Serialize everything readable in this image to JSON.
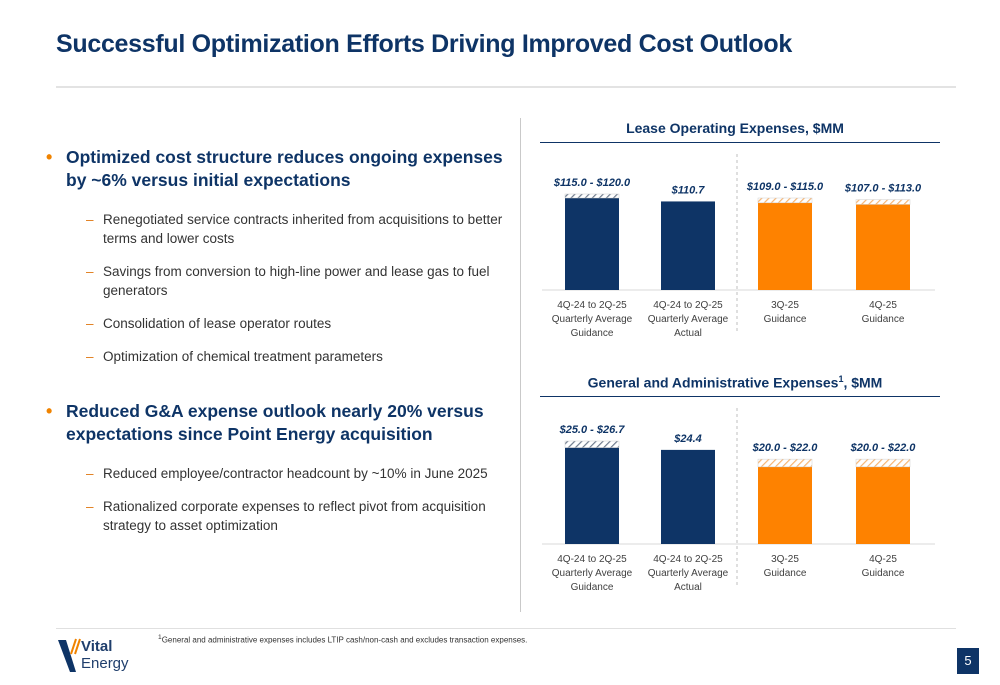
{
  "title": "Successful Optimization Efforts Driving Improved Cost Outlook",
  "bullets": [
    {
      "text": "Optimized cost structure reduces ongoing expenses by ~6% versus initial expectations",
      "subs": [
        "Renegotiated service contracts inherited from acquisitions to better terms and lower costs",
        "Savings from conversion to high-line power and lease gas to fuel generators",
        "Consolidation of lease operator routes",
        "Optimization of chemical treatment parameters"
      ]
    },
    {
      "text": "Reduced G&A expense outlook nearly 20% versus expectations since Point Energy acquisition",
      "subs": [
        "Reduced employee/contractor headcount by ~10% in June 2025",
        "Rationalized corporate expenses to reflect pivot from acquisition strategy to asset optimization"
      ]
    }
  ],
  "colors": {
    "navy": "#0e3466",
    "orange": "#fe8200",
    "orange_hatch": "#f6b574",
    "navy_hatch": "#6f7b8d"
  },
  "chart_data": [
    {
      "type": "bar",
      "title": "Lease Operating Expenses, $MM",
      "title_sup": "",
      "categories": [
        [
          "4Q-24 to 2Q-25",
          "Quarterly Average",
          "Guidance"
        ],
        [
          "4Q-24 to 2Q-25",
          "Quarterly Average",
          "Actual"
        ],
        [
          "3Q-25",
          "Guidance"
        ],
        [
          "4Q-25",
          "Guidance"
        ]
      ],
      "low": [
        115.0,
        110.7,
        109.0,
        107.0
      ],
      "high": [
        120.0,
        110.7,
        115.0,
        113.0
      ],
      "labels": [
        "$115.0 - $120.0",
        "$110.7",
        "$109.0 - $115.0",
        "$107.0 - $113.0"
      ],
      "colors": [
        "navy",
        "navy",
        "orange",
        "orange"
      ],
      "ylim": [
        0,
        125
      ]
    },
    {
      "type": "bar",
      "title": "General and Administrative Expenses",
      "title_sup": "1",
      "title_suffix": ", $MM",
      "categories": [
        [
          "4Q-24 to 2Q-25",
          "Quarterly Average",
          "Guidance"
        ],
        [
          "4Q-24 to 2Q-25",
          "Quarterly Average",
          "Actual"
        ],
        [
          "3Q-25",
          "Guidance"
        ],
        [
          "4Q-25",
          "Guidance"
        ]
      ],
      "low": [
        25.0,
        24.4,
        20.0,
        20.0
      ],
      "high": [
        26.7,
        24.4,
        22.0,
        22.0
      ],
      "labels": [
        "$25.0 - $26.7",
        "$24.4",
        "$20.0 - $22.0",
        "$20.0 - $22.0"
      ],
      "colors": [
        "navy",
        "navy",
        "orange",
        "orange"
      ],
      "ylim": [
        0,
        28
      ]
    }
  ],
  "footnote_sup": "1",
  "footnote": "General and administrative expenses includes LTIP cash/non-cash and excludes transaction expenses.",
  "logo": {
    "line1": "Vital",
    "line2": "Energy"
  },
  "page_number": "5"
}
